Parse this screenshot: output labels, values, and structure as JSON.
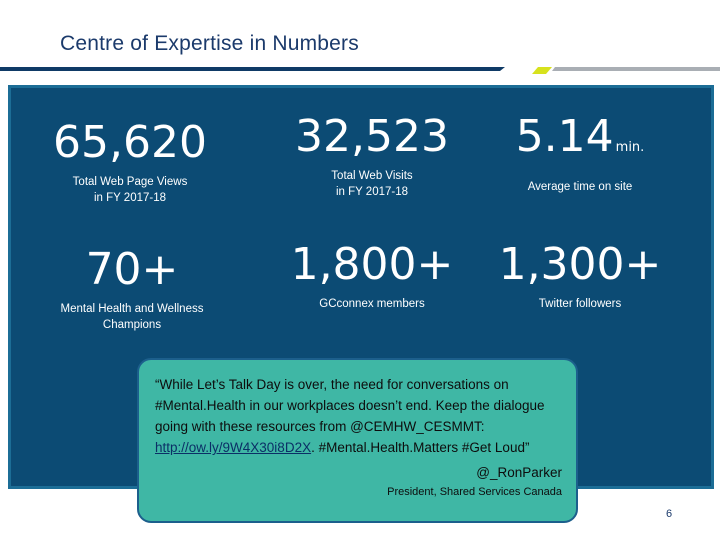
{
  "slide": {
    "title": "Centre of Expertise in Numbers",
    "page_number": "6"
  },
  "colors": {
    "title": "#1b3a6b",
    "panel_background": "#0c4b74",
    "panel_border": "#1c6d96",
    "quote_background": "#3fb7a5",
    "rule_navy": "#0f3a66",
    "rule_gray": "#a9aeb4",
    "rule_accent": "#d7e21d"
  },
  "stats": [
    {
      "value": "65,620",
      "unit": "",
      "caption": [
        "Total Web Page Views",
        "in FY 2017-18"
      ]
    },
    {
      "value": "32,523",
      "unit": "",
      "caption": [
        "Total Web Visits",
        "in FY 2017-18"
      ]
    },
    {
      "value": "5.14",
      "unit": "min.",
      "caption": [
        "Average time on site"
      ]
    },
    {
      "value": "70+",
      "unit": "",
      "caption": [
        "Mental Health and Wellness",
        "Champions"
      ]
    },
    {
      "value": "1,800+",
      "unit": "",
      "caption": [
        "GCconnex members"
      ]
    },
    {
      "value": "1,300+",
      "unit": "",
      "caption": [
        "Twitter followers"
      ]
    }
  ],
  "quote": {
    "text_before_link": "“While Let’s Talk Day is over, the need for conversations on #Mental.Health in our workplaces doesn’t end. Keep the dialogue going with these resources from @CEMHW_CESMMT: ",
    "link": "http://ow.ly/9W4X30i8D2X",
    "text_after_link": ". #Mental.Health.Matters #Get Loud”",
    "author": "@_RonParker",
    "author_title": "President, Shared Services Canada"
  }
}
